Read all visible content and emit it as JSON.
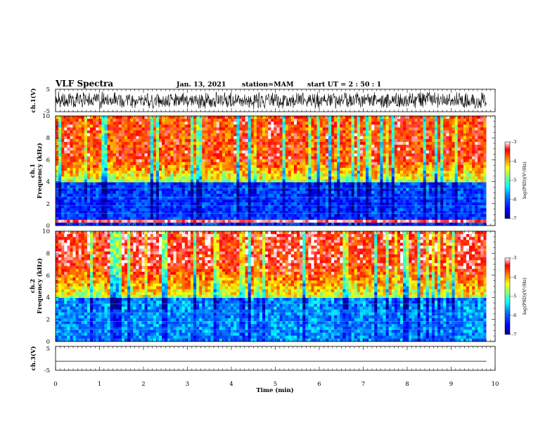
{
  "header": {
    "title": "VLF Spectra",
    "date": "Jan. 13, 2021",
    "station": "station=MAM",
    "start": "start UT =  2 : 50 : 1"
  },
  "chart_data": [
    {
      "type": "line",
      "name": "ch1-waveform",
      "ylabel": "ch.1(V)",
      "ylim": [
        -5,
        5
      ],
      "yticks": [
        "5",
        "-5"
      ],
      "xlim": [
        0,
        10
      ],
      "description_visible": "dense noise waveform spanning roughly -4 to 4 V over the 0-9.8 min interval"
    },
    {
      "type": "heatmap",
      "name": "ch1-spectrogram",
      "ylabel": "ch.1\nFrequency (kHz)",
      "ylim": [
        0,
        10
      ],
      "yticks": [
        "0",
        "2",
        "4",
        "6",
        "8",
        "10"
      ],
      "xlim": [
        0,
        9.8
      ],
      "colorbar": {
        "label": "log(PSD)(V²/Hz)",
        "range": [
          -7,
          -3
        ],
        "ticks": [
          "-3",
          "-4",
          "-5",
          "-6",
          "-7"
        ]
      },
      "visible_levels": {
        "above_6kHz": -3.6,
        "4_to_6kHz": -4.6,
        "below_4kHz": -6.2,
        "line_0.5kHz": -3.2
      }
    },
    {
      "type": "heatmap",
      "name": "ch2-spectrogram",
      "ylabel": "ch.2\nFrequency (kHz)",
      "ylim": [
        0,
        10
      ],
      "yticks": [
        "0",
        "2",
        "4",
        "6",
        "8",
        "10"
      ],
      "xlim": [
        0,
        9.8
      ],
      "colorbar": {
        "label": "log(PSD)(V²/Hz)",
        "range": [
          -7,
          -3
        ],
        "ticks": [
          "-3",
          "-4",
          "-5",
          "-6",
          "-7"
        ]
      },
      "visible_levels": {
        "above_7kHz": -3.4,
        "4_to_7kHz": -4.5,
        "below_4kHz": -5.8
      }
    },
    {
      "type": "line",
      "name": "ch3-waveform",
      "ylabel": "ch.3(V)",
      "ylim": [
        -5,
        5
      ],
      "yticks": [
        "5",
        "0",
        "-5"
      ],
      "xlim": [
        0,
        10
      ],
      "x": [
        0,
        9.8
      ],
      "values": [
        -1.2,
        -1.2
      ]
    }
  ],
  "xaxis": {
    "label": "Time (min)",
    "ticks": [
      "0",
      "1",
      "2",
      "3",
      "4",
      "5",
      "6",
      "7",
      "8",
      "9",
      "10"
    ]
  },
  "colors": {
    "colormap": [
      "#00008f",
      "#0000ff",
      "#0080ff",
      "#00ffff",
      "#80ff80",
      "#ffff00",
      "#ff8000",
      "#ff0000",
      "#ffffff"
    ]
  }
}
